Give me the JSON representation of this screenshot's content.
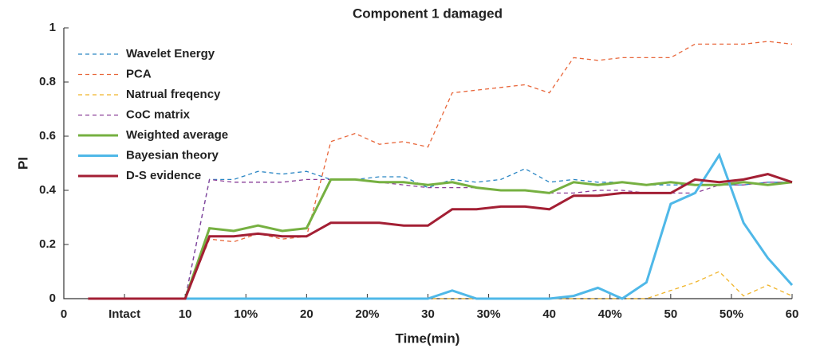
{
  "chart_data": {
    "type": "line",
    "title": "Component 1 damaged",
    "xlabel": "Time(min)",
    "ylabel": "PI",
    "x": [
      2,
      10,
      12,
      14,
      16,
      18,
      20,
      22,
      24,
      26,
      28,
      30,
      32,
      34,
      36,
      38,
      40,
      42,
      44,
      46,
      48,
      50,
      52,
      54,
      56,
      58,
      60
    ],
    "series": [
      {
        "name": "Wavelet Energy",
        "color": "#2a86c4",
        "dash": true,
        "values": [
          0,
          0,
          0.44,
          0.44,
          0.47,
          0.46,
          0.47,
          0.44,
          0.44,
          0.45,
          0.45,
          0.41,
          0.44,
          0.43,
          0.44,
          0.48,
          0.43,
          0.44,
          0.43,
          0.43,
          0.42,
          0.42,
          0.42,
          0.42,
          0.42,
          0.43,
          0.43
        ]
      },
      {
        "name": "PCA",
        "color": "#e8663a",
        "dash": true,
        "values": [
          0,
          0,
          0.22,
          0.21,
          0.24,
          0.22,
          0.23,
          0.58,
          0.61,
          0.57,
          0.58,
          0.56,
          0.76,
          0.77,
          0.78,
          0.79,
          0.76,
          0.89,
          0.88,
          0.89,
          0.89,
          0.89,
          0.94,
          0.94,
          0.94,
          0.95,
          0.94
        ]
      },
      {
        "name": "Natrual freqency",
        "color": "#f0b429",
        "dash": true,
        "values": [
          0,
          0,
          0,
          0,
          0,
          0,
          0,
          0,
          0,
          0,
          0,
          0,
          0,
          0,
          0,
          0,
          0,
          0,
          0,
          0,
          0,
          0.03,
          0.06,
          0.1,
          0.01,
          0.05,
          0.01
        ]
      },
      {
        "name": "CoC matrix",
        "color": "#8a3f98",
        "dash": true,
        "values": [
          0,
          0,
          0.44,
          0.43,
          0.43,
          0.43,
          0.44,
          0.44,
          0.44,
          0.43,
          0.42,
          0.41,
          0.41,
          0.41,
          0.4,
          0.4,
          0.39,
          0.39,
          0.4,
          0.4,
          0.39,
          0.39,
          0.39,
          0.42,
          0.42,
          0.43,
          0.43
        ]
      },
      {
        "name": "Weighted average",
        "color": "#76b041",
        "dash": false,
        "values": [
          0,
          0,
          0.26,
          0.25,
          0.27,
          0.25,
          0.26,
          0.44,
          0.44,
          0.43,
          0.43,
          0.42,
          0.43,
          0.41,
          0.4,
          0.4,
          0.39,
          0.43,
          0.42,
          0.43,
          0.42,
          0.43,
          0.42,
          0.42,
          0.43,
          0.42,
          0.43
        ]
      },
      {
        "name": "Bayesian theory",
        "color": "#4fb8e8",
        "dash": false,
        "values": [
          0,
          0,
          0,
          0,
          0,
          0,
          0,
          0,
          0,
          0,
          0,
          0,
          0.03,
          0,
          0,
          0,
          0,
          0.01,
          0.04,
          0,
          0.06,
          0.35,
          0.39,
          0.53,
          0.28,
          0.15,
          0.05
        ]
      },
      {
        "name": "D-S evidence",
        "color": "#a31f34",
        "dash": false,
        "values": [
          0,
          0,
          0.23,
          0.23,
          0.24,
          0.23,
          0.23,
          0.28,
          0.28,
          0.28,
          0.27,
          0.27,
          0.33,
          0.33,
          0.34,
          0.34,
          0.33,
          0.38,
          0.38,
          0.39,
          0.39,
          0.39,
          0.44,
          0.43,
          0.44,
          0.46,
          0.43
        ]
      }
    ],
    "xlim": [
      0,
      60
    ],
    "xticks": [
      0,
      {
        "value": 5,
        "label": "Intact"
      },
      10,
      {
        "value": 15,
        "label": "10%"
      },
      20,
      {
        "value": 25,
        "label": "20%"
      },
      30,
      {
        "value": 35,
        "label": "30%"
      },
      40,
      {
        "value": 45,
        "label": "40%"
      },
      50,
      {
        "value": 55,
        "label": "50%"
      },
      60
    ],
    "ylim": [
      0,
      1
    ],
    "yticks": [
      0,
      0.2,
      0.4,
      0.6,
      0.8,
      1
    ],
    "legend": "upper left"
  }
}
